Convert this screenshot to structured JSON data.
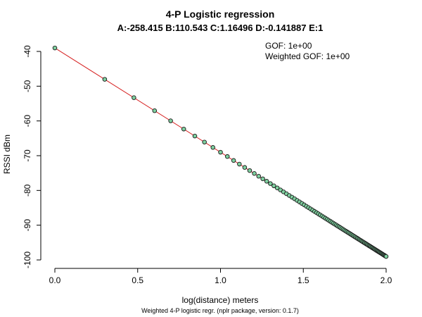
{
  "chart_data": {
    "type": "scatter",
    "title": "4-P Logistic regression",
    "subtitle": "A:-258.415   B:110.543   C:1.16496   D:-0.141887   E:1",
    "xlabel": "log(distance) meters",
    "ylabel": "RSSI dBm",
    "caption": "Weighted 4-P logistic regr. (nplr package, version: 0.1.7)",
    "annotations": [
      "GOF: 1e+00",
      "Weighted GOF: 1e+00"
    ],
    "xlim": [
      0.0,
      2.0
    ],
    "ylim": [
      -100,
      -40
    ],
    "x_ticks": [
      0.0,
      0.5,
      1.0,
      1.5,
      2.0
    ],
    "x_tick_labels": [
      "0.0",
      "0.5",
      "1.0",
      "1.5",
      "2.0"
    ],
    "y_ticks": [
      -40,
      -50,
      -60,
      -70,
      -80,
      -90,
      -100
    ],
    "y_tick_labels": [
      "-40",
      "-50",
      "-60",
      "-70",
      "-80",
      "-90",
      "-100"
    ],
    "series": [
      {
        "type": "scatter",
        "x": [
          0,
          0.30103,
          0.47712,
          0.60206,
          0.69897,
          0.77815,
          0.8451,
          0.90309,
          0.95424,
          1,
          1.04139,
          1.07918,
          1.11394,
          1.14613,
          1.17609,
          1.20412,
          1.23045,
          1.25527,
          1.27875,
          1.30103,
          1.32222,
          1.34242,
          1.36173,
          1.38021,
          1.39794,
          1.41497,
          1.43136,
          1.44716,
          1.4624,
          1.47712,
          1.49136,
          1.50515,
          1.51851,
          1.53148,
          1.54407,
          1.5563,
          1.5682,
          1.57978,
          1.59106,
          1.60206,
          1.61278,
          1.62325,
          1.63347,
          1.64345,
          1.65321,
          1.66276,
          1.6721,
          1.68124,
          1.6902,
          1.69897,
          1.70757,
          1.716,
          1.72428,
          1.73239,
          1.74036,
          1.74819,
          1.75587,
          1.76343,
          1.77085,
          1.77815,
          1.78533,
          1.79239,
          1.79934,
          1.80618,
          1.81291,
          1.81954,
          1.82607,
          1.83251,
          1.83885,
          1.8451,
          1.85126,
          1.85733,
          1.86332,
          1.86923,
          1.87506,
          1.88081,
          1.88649,
          1.89209,
          1.89763,
          1.90309,
          1.90849,
          1.91381,
          1.91908,
          1.92428,
          1.92942,
          1.9345,
          1.93952,
          1.94448,
          1.94939,
          1.95424,
          1.95904,
          1.96379,
          1.96848,
          1.97313,
          1.97772,
          1.98227,
          1.98677,
          1.99123,
          1.99564,
          2
        ],
        "y": [
          -39,
          -48.03,
          -53.31,
          -57.06,
          -59.97,
          -62.34,
          -64.35,
          -66.09,
          -67.63,
          -69,
          -70.24,
          -71.38,
          -72.42,
          -73.38,
          -74.28,
          -75.12,
          -75.91,
          -76.66,
          -77.36,
          -78.03,
          -78.67,
          -79.27,
          -79.85,
          -80.41,
          -80.94,
          -81.45,
          -81.94,
          -82.41,
          -82.87,
          -83.31,
          -83.74,
          -84.15,
          -84.56,
          -84.94,
          -85.32,
          -85.69,
          -86.05,
          -86.39,
          -86.73,
          -87.06,
          -87.38,
          -87.7,
          -88,
          -88.3,
          -88.6,
          -88.88,
          -89.16,
          -89.44,
          -89.71,
          -89.97,
          -90.23,
          -90.48,
          -90.73,
          -90.97,
          -91.21,
          -91.45,
          -91.68,
          -91.9,
          -92.13,
          -92.34,
          -92.56,
          -92.77,
          -92.98,
          -93.19,
          -93.39,
          -93.59,
          -93.78,
          -93.98,
          -94.17,
          -94.35,
          -94.54,
          -94.72,
          -94.9,
          -95.08,
          -95.25,
          -95.42,
          -95.59,
          -95.76,
          -95.93,
          -96.09,
          -96.25,
          -96.41,
          -96.57,
          -96.73,
          -96.88,
          -97.03,
          -97.19,
          -97.33,
          -97.48,
          -97.63,
          -97.77,
          -97.91,
          -98.05,
          -98.19,
          -98.33,
          -98.47,
          -98.6,
          -98.74,
          -98.87,
          -99
        ]
      },
      {
        "type": "line",
        "x": [
          0,
          2
        ],
        "y": [
          -39,
          -99
        ]
      }
    ],
    "colors": {
      "point_fill": "#7fd1a0",
      "point_stroke": "#1a1a1a",
      "fit_line": "#d62020",
      "axis": "#000000",
      "background": "#ffffff"
    },
    "grid": false,
    "annotation_placement": "top-right"
  }
}
